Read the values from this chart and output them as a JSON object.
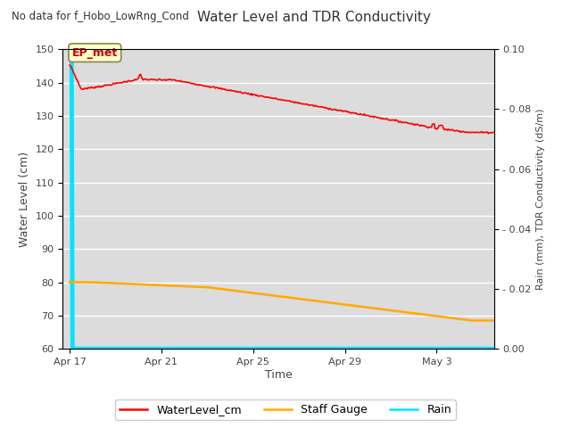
{
  "title": "Water Level and TDR Conductivity",
  "subtitle": "No data for f_Hobo_LowRng_Cond",
  "xlabel": "Time",
  "ylabel_left": "Water Level (cm)",
  "ylabel_right": "Rain (mm), TDR Conductivity (dS/m)",
  "ylim_left": [
    60,
    150
  ],
  "ylim_right": [
    0.0,
    0.1
  ],
  "yticks_left": [
    60,
    70,
    80,
    90,
    100,
    110,
    120,
    130,
    140,
    150
  ],
  "yticks_right": [
    0.0,
    0.02,
    0.04,
    0.06,
    0.08,
    0.1
  ],
  "annotation_text": "EP_met",
  "bg_color": "#dcdcdc",
  "fig_color": "#ffffff",
  "line_water_color": "#ff0000",
  "line_staff_color": "#ffaa00",
  "line_rain_color": "#00e5ff",
  "legend_labels": [
    "WaterLevel_cm",
    "Staff Gauge",
    "Rain"
  ],
  "x_tick_labels": [
    "Apr 17",
    "Apr 21",
    "Apr 25",
    "Apr 29",
    "May 3"
  ],
  "x_tick_days": [
    0,
    4,
    8,
    12,
    16
  ],
  "xlim": [
    -0.3,
    18.5
  ]
}
